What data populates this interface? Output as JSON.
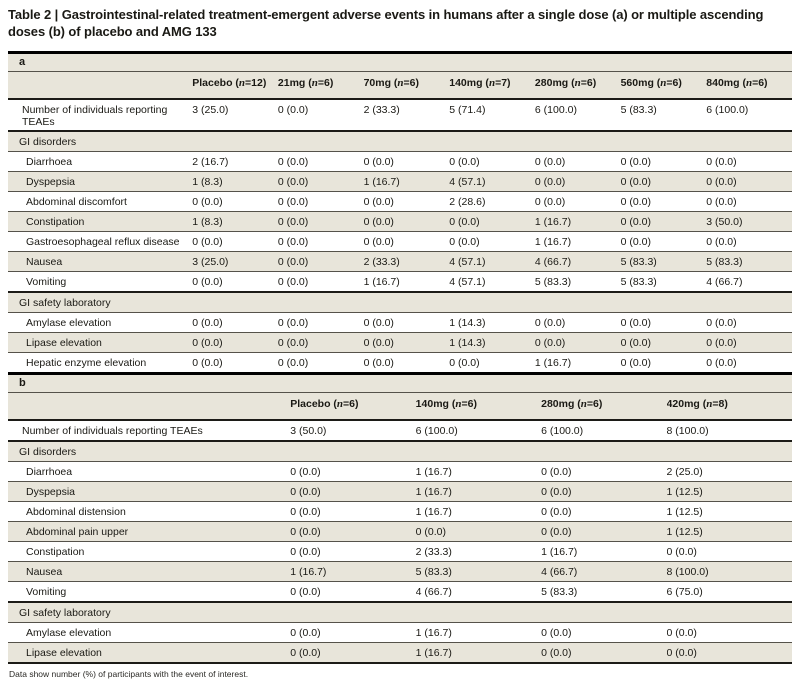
{
  "title": "Table 2 | Gastrointestinal-related treatment-emergent adverse events in humans after a single dose (a) or multiple ascending doses (b) of placebo and AMG 133",
  "footnote": "Data show number (%) of participants with the event of interest.",
  "colors": {
    "stripe": "#e8e5da",
    "rule_light": "#55524a",
    "rule_dark": "#1c1b17",
    "text": "#1a1914"
  },
  "tables": [
    {
      "label": "a",
      "header": [
        {
          "dose": "Placebo",
          "n": "12"
        },
        {
          "dose": "21mg",
          "n": "6"
        },
        {
          "dose": "70mg",
          "n": "6"
        },
        {
          "dose": "140mg",
          "n": "7"
        },
        {
          "dose": "280mg",
          "n": "6"
        },
        {
          "dose": "560mg",
          "n": "6"
        },
        {
          "dose": "840mg",
          "n": "6"
        }
      ],
      "rows": [
        {
          "type": "data",
          "label": "Number of individuals reporting TEAEs",
          "values": [
            "3 (25.0)",
            "0 (0.0)",
            "2 (33.3)",
            "5 (71.4)",
            "6 (100.0)",
            "5 (83.3)",
            "6 (100.0)"
          ]
        },
        {
          "type": "section",
          "label": "GI disorders"
        },
        {
          "type": "data",
          "label": "Diarrhoea",
          "values": [
            "2 (16.7)",
            "0 (0.0)",
            "0 (0.0)",
            "0 (0.0)",
            "0 (0.0)",
            "0 (0.0)",
            "0 (0.0)"
          ]
        },
        {
          "type": "data",
          "label": "Dyspepsia",
          "values": [
            "1 (8.3)",
            "0 (0.0)",
            "1 (16.7)",
            "4 (57.1)",
            "0 (0.0)",
            "0 (0.0)",
            "0 (0.0)"
          ]
        },
        {
          "type": "data",
          "label": "Abdominal discomfort",
          "values": [
            "0 (0.0)",
            "0 (0.0)",
            "0 (0.0)",
            "2 (28.6)",
            "0 (0.0)",
            "0 (0.0)",
            "0 (0.0)"
          ]
        },
        {
          "type": "data",
          "label": "Constipation",
          "values": [
            "1 (8.3)",
            "0 (0.0)",
            "0 (0.0)",
            "0 (0.0)",
            "1 (16.7)",
            "0 (0.0)",
            "3 (50.0)"
          ]
        },
        {
          "type": "data",
          "label": "Gastroesophageal reflux disease",
          "values": [
            "0 (0.0)",
            "0 (0.0)",
            "0 (0.0)",
            "0 (0.0)",
            "1 (16.7)",
            "0 (0.0)",
            "0 (0.0)"
          ]
        },
        {
          "type": "data",
          "label": "Nausea",
          "values": [
            "3 (25.0)",
            "0 (0.0)",
            "2 (33.3)",
            "4 (57.1)",
            "4 (66.7)",
            "5 (83.3)",
            "5 (83.3)"
          ]
        },
        {
          "type": "data",
          "label": "Vomiting",
          "values": [
            "0 (0.0)",
            "0 (0.0)",
            "1 (16.7)",
            "4 (57.1)",
            "5 (83.3)",
            "5 (83.3)",
            "4 (66.7)"
          ]
        },
        {
          "type": "section",
          "label": "GI safety laboratory"
        },
        {
          "type": "data",
          "label": "Amylase elevation",
          "values": [
            "0 (0.0)",
            "0 (0.0)",
            "0 (0.0)",
            "1 (14.3)",
            "0 (0.0)",
            "0 (0.0)",
            "0 (0.0)"
          ]
        },
        {
          "type": "data",
          "label": "Lipase elevation",
          "values": [
            "0 (0.0)",
            "0 (0.0)",
            "0 (0.0)",
            "1 (14.3)",
            "0 (0.0)",
            "0 (0.0)",
            "0 (0.0)"
          ]
        },
        {
          "type": "data",
          "label": "Hepatic enzyme elevation",
          "values": [
            "0 (0.0)",
            "0 (0.0)",
            "0 (0.0)",
            "0 (0.0)",
            "1 (16.7)",
            "0 (0.0)",
            "0 (0.0)"
          ]
        }
      ]
    },
    {
      "label": "b",
      "header": [
        {
          "dose": "Placebo",
          "n": "6"
        },
        {
          "dose": "140mg",
          "n": "6"
        },
        {
          "dose": "280mg",
          "n": "6"
        },
        {
          "dose": "420mg",
          "n": "8"
        }
      ],
      "rows": [
        {
          "type": "data",
          "label": "Number of individuals reporting TEAEs",
          "values": [
            "3 (50.0)",
            "6 (100.0)",
            "6 (100.0)",
            "8 (100.0)"
          ]
        },
        {
          "type": "section",
          "label": "GI disorders"
        },
        {
          "type": "data",
          "label": "Diarrhoea",
          "values": [
            "0 (0.0)",
            "1 (16.7)",
            "0 (0.0)",
            "2 (25.0)"
          ]
        },
        {
          "type": "data",
          "label": "Dyspepsia",
          "values": [
            "0 (0.0)",
            "1 (16.7)",
            "0 (0.0)",
            "1 (12.5)"
          ]
        },
        {
          "type": "data",
          "label": "Abdominal distension",
          "values": [
            "0 (0.0)",
            "1 (16.7)",
            "0 (0.0)",
            "1 (12.5)"
          ]
        },
        {
          "type": "data",
          "label": "Abdominal pain upper",
          "values": [
            "0 (0.0)",
            "0 (0.0)",
            "0 (0.0)",
            "1 (12.5)"
          ]
        },
        {
          "type": "data",
          "label": "Constipation",
          "values": [
            "0 (0.0)",
            "2 (33.3)",
            "1 (16.7)",
            "0 (0.0)"
          ]
        },
        {
          "type": "data",
          "label": "Nausea",
          "values": [
            "1 (16.7)",
            "5 (83.3)",
            "4 (66.7)",
            "8 (100.0)"
          ]
        },
        {
          "type": "data",
          "label": "Vomiting",
          "values": [
            "0 (0.0)",
            "4 (66.7)",
            "5 (83.3)",
            "6 (75.0)"
          ]
        },
        {
          "type": "section",
          "label": "GI safety laboratory"
        },
        {
          "type": "data",
          "label": "Amylase elevation",
          "values": [
            "0 (0.0)",
            "1 (16.7)",
            "0 (0.0)",
            "0 (0.0)"
          ]
        },
        {
          "type": "data",
          "label": "Lipase elevation",
          "values": [
            "0 (0.0)",
            "1 (16.7)",
            "0 (0.0)",
            "0 (0.0)"
          ]
        }
      ]
    }
  ]
}
